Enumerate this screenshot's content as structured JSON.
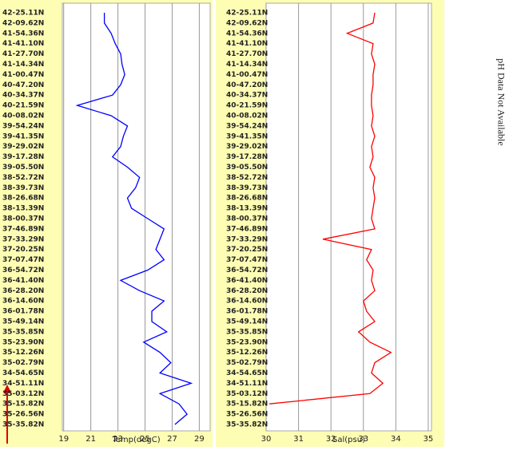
{
  "chart_data": [
    {
      "type": "line",
      "orientation": "vertical",
      "xlabel": "Temp(degC)",
      "color": "#0000ff",
      "categories": [
        "42-25.11N",
        "42-09.62N",
        "41-54.36N",
        "41-41.10N",
        "41-27.70N",
        "41-14.34N",
        "41-00.47N",
        "40-47.20N",
        "40-34.37N",
        "40-21.59N",
        "40-08.02N",
        "39-54.24N",
        "39-41.35N",
        "39-29.02N",
        "39-17.28N",
        "39-05.50N",
        "38-52.72N",
        "38-39.73N",
        "38-26.68N",
        "38-13.39N",
        "38-00.37N",
        "37-46.89N",
        "37-33.29N",
        "37-20.25N",
        "37-07.47N",
        "36-54.72N",
        "36-41.40N",
        "36-28.20N",
        "36-14.60N",
        "36-01.78N",
        "35-49.14N",
        "35-35.85N",
        "35-23.90N",
        "35-12.26N",
        "35-02.79N",
        "34-54.65N",
        "34-51.11N",
        "35-03.12N",
        "35-15.82N",
        "35-26.56N",
        "35-35.82N"
      ],
      "values": [
        22.0,
        22.0,
        22.5,
        22.8,
        23.2,
        23.3,
        23.5,
        23.2,
        22.6,
        20.0,
        22.5,
        23.7,
        23.4,
        23.2,
        22.6,
        23.7,
        24.6,
        24.3,
        23.7,
        24.0,
        25.2,
        26.4,
        26.1,
        25.8,
        26.4,
        25.2,
        23.2,
        24.6,
        26.4,
        25.5,
        25.5,
        26.6,
        24.9,
        26.1,
        26.9,
        26.1,
        28.4,
        26.1,
        27.5,
        28.1,
        27.2
      ],
      "xlim": [
        18.9,
        29.8
      ],
      "xticks": [
        19,
        21,
        23,
        25,
        27,
        29
      ],
      "grid": true
    },
    {
      "type": "line",
      "orientation": "vertical",
      "xlabel": "Sal(psu)",
      "color": "#ff0000",
      "categories": [
        "42-25.11N",
        "42-09.62N",
        "41-54.36N",
        "41-41.10N",
        "41-27.70N",
        "41-14.34N",
        "41-00.47N",
        "40-47.20N",
        "40-34.37N",
        "40-21.59N",
        "40-08.02N",
        "39-54.24N",
        "39-41.35N",
        "39-29.02N",
        "39-17.28N",
        "39-05.50N",
        "38-52.72N",
        "38-39.73N",
        "38-26.68N",
        "38-13.39N",
        "38-00.37N",
        "37-46.89N",
        "37-33.29N",
        "37-20.25N",
        "37-07.47N",
        "36-54.72N",
        "36-41.40N",
        "36-28.20N",
        "36-14.60N",
        "36-01.78N",
        "35-49.14N",
        "35-35.85N",
        "35-23.90N",
        "35-12.26N",
        "35-02.79N",
        "34-54.65N",
        "34-51.11N",
        "35-03.12N",
        "35-15.82N",
        "35-26.56N",
        "35-35.82N"
      ],
      "values": [
        33.35,
        33.3,
        32.5,
        33.3,
        33.25,
        33.35,
        33.3,
        33.3,
        33.25,
        33.25,
        33.3,
        33.25,
        33.35,
        33.25,
        33.3,
        33.2,
        33.35,
        33.3,
        33.35,
        33.3,
        33.25,
        33.35,
        31.75,
        33.25,
        33.1,
        33.3,
        33.25,
        33.35,
        33.0,
        33.1,
        33.35,
        32.85,
        33.2,
        33.85,
        33.35,
        33.25,
        33.6,
        33.2,
        30.1,
        null,
        null
      ],
      "xlim": [
        30,
        35.1
      ],
      "xticks": [
        30,
        31,
        32,
        33,
        34,
        35
      ],
      "grid": true
    }
  ],
  "annotation": "pH Data Not Available"
}
